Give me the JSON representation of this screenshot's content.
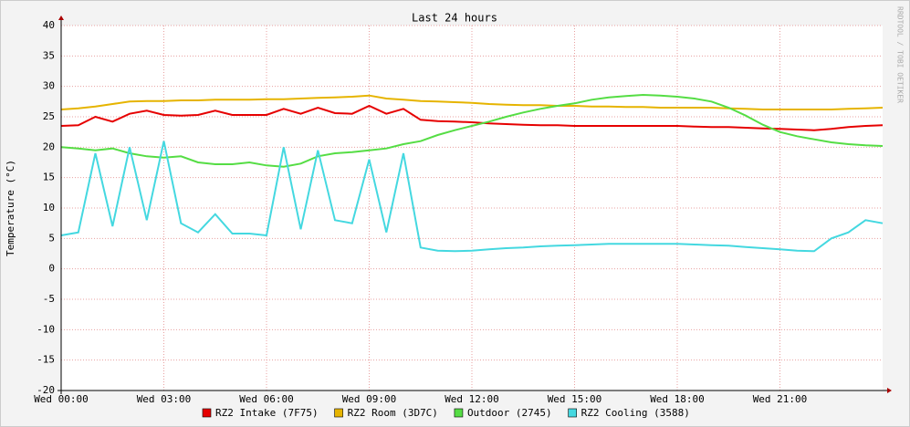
{
  "chart_data": {
    "type": "line",
    "title": "Last 24 hours",
    "y_label": "Temperature (°C)",
    "watermark": "RRDTOOL / TOBI OETIKER",
    "x": [
      0,
      0.5,
      1,
      1.5,
      2,
      2.5,
      3,
      3.5,
      4,
      4.5,
      5,
      5.5,
      6,
      6.5,
      7,
      7.5,
      8,
      8.5,
      9,
      9.5,
      10,
      10.5,
      11,
      11.5,
      12,
      12.5,
      13,
      13.5,
      14,
      14.5,
      15,
      15.5,
      16,
      16.5,
      17,
      17.5,
      18,
      18.5,
      19,
      19.5,
      20,
      20.5,
      21,
      21.5,
      22,
      22.5,
      23,
      23.5,
      24
    ],
    "xlim": [
      0,
      24
    ],
    "xticks": [
      {
        "value": 0,
        "label": "Wed 00:00"
      },
      {
        "value": 3,
        "label": "Wed 03:00"
      },
      {
        "value": 6,
        "label": "Wed 06:00"
      },
      {
        "value": 9,
        "label": "Wed 09:00"
      },
      {
        "value": 12,
        "label": "Wed 12:00"
      },
      {
        "value": 15,
        "label": "Wed 15:00"
      },
      {
        "value": 18,
        "label": "Wed 18:00"
      },
      {
        "value": 21,
        "label": "Wed 21:00"
      }
    ],
    "ylim": [
      -20,
      40
    ],
    "yticks": [
      -20,
      -15,
      -10,
      -5,
      0,
      5,
      10,
      15,
      20,
      25,
      30,
      35,
      40
    ],
    "grid": true,
    "series": [
      {
        "name": "RZ2 Intake (7F75)",
        "color": "#e60000",
        "values": [
          23.5,
          23.6,
          25,
          24.2,
          25.5,
          26,
          25.3,
          25.2,
          25.3,
          26,
          25.3,
          25.3,
          25.3,
          26.3,
          25.5,
          26.5,
          25.6,
          25.5,
          26.8,
          25.5,
          26.3,
          24.5,
          24.3,
          24.2,
          24.1,
          23.9,
          23.8,
          23.7,
          23.6,
          23.6,
          23.5,
          23.5,
          23.5,
          23.5,
          23.5,
          23.5,
          23.5,
          23.4,
          23.3,
          23.3,
          23.2,
          23.1,
          23,
          22.9,
          22.8,
          23,
          23.3,
          23.5,
          23.6
        ]
      },
      {
        "name": "RZ2 Room (3D7C)",
        "color": "#e6b400",
        "values": [
          26.2,
          26.4,
          26.7,
          27.1,
          27.5,
          27.6,
          27.6,
          27.7,
          27.7,
          27.8,
          27.8,
          27.8,
          27.9,
          27.9,
          28,
          28.1,
          28.2,
          28.3,
          28.5,
          28,
          27.8,
          27.6,
          27.5,
          27.4,
          27.3,
          27.1,
          27,
          26.9,
          26.9,
          26.8,
          26.8,
          26.7,
          26.7,
          26.6,
          26.6,
          26.5,
          26.5,
          26.5,
          26.5,
          26.4,
          26.3,
          26.2,
          26.2,
          26.2,
          26.2,
          26.2,
          26.3,
          26.4,
          26.5
        ]
      },
      {
        "name": "Outdoor (2745)",
        "color": "#55dd44",
        "values": [
          20,
          19.8,
          19.5,
          19.8,
          19,
          18.5,
          18.3,
          18.5,
          17.5,
          17.2,
          17.2,
          17.5,
          17,
          16.8,
          17.3,
          18.5,
          19,
          19.2,
          19.5,
          19.8,
          20.5,
          21,
          22,
          22.8,
          23.5,
          24.2,
          25,
          25.7,
          26.3,
          26.8,
          27.2,
          27.8,
          28.2,
          28.4,
          28.6,
          28.5,
          28.3,
          28,
          27.5,
          26.5,
          25.2,
          23.7,
          22.5,
          21.8,
          21.3,
          20.8,
          20.5,
          20.3,
          20.2
        ]
      },
      {
        "name": "RZ2 Cooling (3588)",
        "color": "#44d8e0",
        "values": [
          5.5,
          6,
          19,
          7,
          20,
          8,
          21,
          7.5,
          6,
          9,
          5.8,
          5.8,
          5.5,
          20,
          6.5,
          19.5,
          8,
          7.5,
          18,
          6,
          19,
          3.5,
          3,
          2.9,
          3,
          3.2,
          3.4,
          3.5,
          3.7,
          3.8,
          3.9,
          4,
          4.1,
          4.1,
          4.1,
          4.1,
          4.1,
          4,
          3.9,
          3.8,
          3.6,
          3.4,
          3.2,
          3,
          2.9,
          5,
          6,
          8,
          7.5
        ]
      }
    ]
  }
}
